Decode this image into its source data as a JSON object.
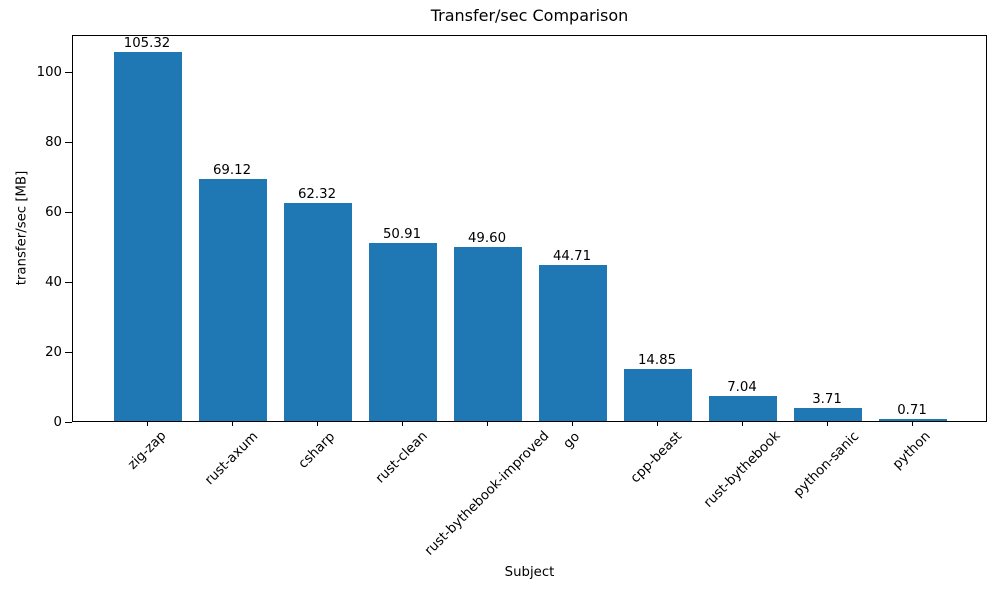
{
  "chart_data": {
    "type": "bar",
    "title": "Transfer/sec Comparison",
    "xlabel": "Subject",
    "ylabel": "transfer/sec [MB]",
    "categories": [
      "zig-zap",
      "rust-axum",
      "csharp",
      "rust-clean",
      "rust-bythebook-improved",
      "go",
      "cpp-beast",
      "rust-bythebook",
      "python-sanic",
      "python"
    ],
    "values": [
      105.32,
      69.12,
      62.32,
      50.91,
      49.6,
      44.71,
      14.85,
      7.04,
      3.71,
      0.71
    ],
    "bar_labels": [
      "105.32",
      "69.12",
      "62.32",
      "50.91",
      "49.60",
      "44.71",
      "14.85",
      "7.04",
      "3.71",
      "0.71"
    ],
    "ylim": [
      0,
      110.6
    ],
    "yticks": [
      0,
      20,
      40,
      60,
      80,
      100
    ],
    "grid": false,
    "legend": null,
    "bar_color": "#1f77b4",
    "text_color": "#000000",
    "spine_color": "#000000",
    "xtick_rotation_deg": 45
  }
}
